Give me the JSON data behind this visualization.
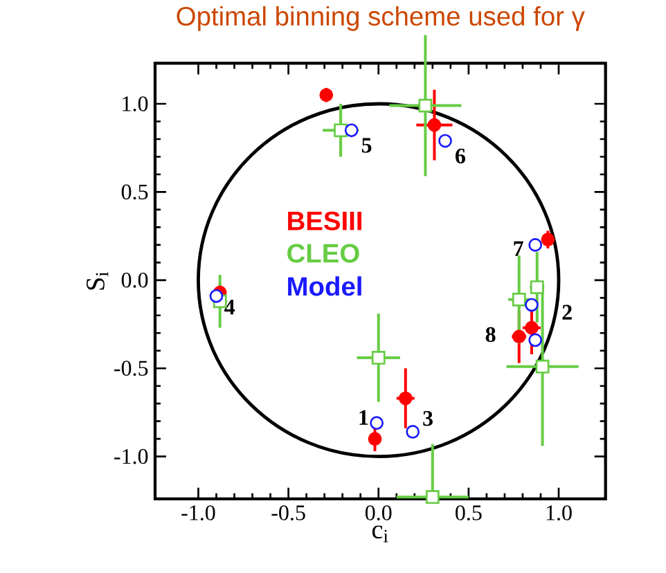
{
  "chart_data": {
    "type": "scatter",
    "title": "Optimal binning scheme used for γ",
    "xlabel": "c$_{i}$",
    "ylabel": "S$_{i}$",
    "xlim": [
      -1.24,
      1.26
    ],
    "ylim": [
      -1.24,
      1.23
    ],
    "xticks": [
      {
        "value": -1,
        "label": "-1.0"
      },
      {
        "value": -0.5,
        "label": "-0.5"
      },
      {
        "value": 0,
        "label": "0.0"
      },
      {
        "value": 0.5,
        "label": "0.5"
      },
      {
        "value": 1,
        "label": "1.0"
      }
    ],
    "yticks": [
      {
        "value": -1,
        "label": "-1.0"
      },
      {
        "value": -0.5,
        "label": "-0.5"
      },
      {
        "value": 0,
        "label": "0.0"
      },
      {
        "value": 0.5,
        "label": "0.5"
      },
      {
        "value": 1,
        "label": "1.0"
      }
    ],
    "grid": false,
    "legend": "center",
    "series": [
      {
        "name": "BESIII",
        "color": "#ff0000",
        "marker": "circle",
        "x": [
          -0.02,
          0.85,
          0.15,
          -0.88,
          -0.29,
          0.31,
          0.94,
          0.78
        ],
        "values": [
          -0.9,
          -0.27,
          -0.67,
          -0.07,
          1.05,
          0.88,
          0.23,
          -0.32
        ],
        "errors": [
          0.07,
          0.15,
          0.17,
          0.05,
          0.04,
          0.2,
          0.05,
          0.15
        ],
        "xerrors": [
          0.03,
          0.05,
          0.05,
          0.03,
          0.03,
          0.1,
          0.03,
          0.04
        ]
      },
      {
        "name": "CLEO",
        "color": "#66cc44",
        "marker": "square",
        "x": [
          0.0,
          0.88,
          0.3,
          -0.88,
          -0.21,
          0.26,
          0.78,
          0.91
        ],
        "values": [
          -0.44,
          -0.04,
          -1.23,
          -0.12,
          0.85,
          0.99,
          -0.11,
          -0.49
        ],
        "errors": [
          0.25,
          0.2,
          [
            -1.23,
            -0.93
          ],
          0.15,
          0.15,
          0.4,
          0.25,
          0.45
        ],
        "xerrors": [
          0.12,
          0.04,
          0.2,
          0.04,
          0.1,
          0.2,
          0.06,
          0.2
        ]
      },
      {
        "name": "Model",
        "color": "#1a1aff",
        "marker": "circle",
        "x": [
          -0.01,
          0.85,
          0.19,
          -0.9,
          -0.15,
          0.37,
          0.87,
          0.87
        ],
        "values": [
          -0.81,
          -0.14,
          -0.86,
          -0.09,
          0.85,
          0.79,
          0.2,
          -0.34
        ]
      }
    ],
    "annotations": [
      {
        "text": "1",
        "x": -0.01,
        "y": -0.81
      },
      {
        "text": "2",
        "x": 0.85,
        "y": -0.14
      },
      {
        "text": "3",
        "x": 0.19,
        "y": -0.86
      },
      {
        "text": "4",
        "x": -0.9,
        "y": -0.09
      },
      {
        "text": "5",
        "x": -0.15,
        "y": 0.85
      },
      {
        "text": "6",
        "x": 0.37,
        "y": 0.79
      },
      {
        "text": "7",
        "x": 0.87,
        "y": 0.2
      },
      {
        "text": "8",
        "x": 0.87,
        "y": -0.34
      }
    ]
  }
}
